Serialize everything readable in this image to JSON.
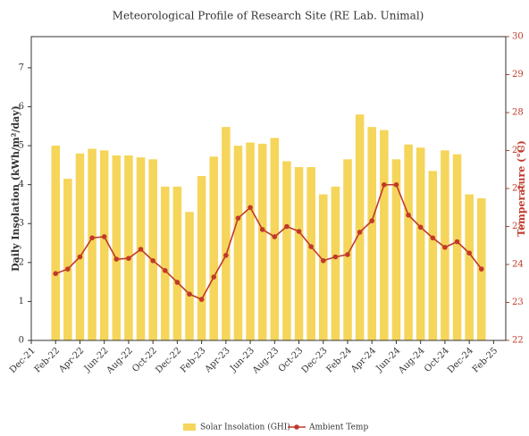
{
  "chart_data": {
    "type": "bar-line",
    "title": "Meteorological Profile of Research Site (RE Lab. Unimal)",
    "y_label": "Daily Insolation (kWh/m²/day)",
    "y2_label": "Temperature (°C)",
    "x": [
      "Feb-22",
      "Mar-22",
      "Apr-22",
      "May-22",
      "Jun-22",
      "Jul-22",
      "Aug-22",
      "Sep-22",
      "Oct-22",
      "Nov-22",
      "Dec-22",
      "Jan-23",
      "Feb-23",
      "Mar-23",
      "Apr-23",
      "May-23",
      "Jun-23",
      "Jul-23",
      "Aug-23",
      "Sep-23",
      "Oct-23",
      "Nov-23",
      "Dec-23",
      "Jan-24",
      "Feb-24",
      "Mar-24",
      "Apr-24",
      "May-24",
      "Jun-24",
      "Jul-24",
      "Aug-24",
      "Sep-24",
      "Oct-24",
      "Nov-24",
      "Dec-24",
      "Jan-25"
    ],
    "series": [
      {
        "name": "Solar Insolation (GHI)",
        "type": "bar",
        "color": "#f5d55a",
        "values": [
          5.0,
          4.15,
          4.8,
          4.92,
          4.88,
          4.75,
          4.75,
          4.7,
          4.65,
          3.95,
          3.95,
          3.3,
          4.22,
          4.72,
          5.48,
          5.0,
          5.08,
          5.05,
          5.2,
          4.6,
          4.45,
          4.45,
          3.75,
          3.95,
          4.65,
          5.8,
          5.48,
          5.4,
          4.65,
          5.03,
          4.95,
          4.35,
          4.88,
          4.78,
          3.75,
          3.65
        ]
      },
      {
        "name": "Ambient Temp",
        "type": "line",
        "axis": "y2",
        "color": "#c0392b",
        "values": [
          23.76,
          23.88,
          24.2,
          24.7,
          24.73,
          24.14,
          24.16,
          24.4,
          24.1,
          23.84,
          23.53,
          23.22,
          23.08,
          23.67,
          24.24,
          25.22,
          25.5,
          24.92,
          24.73,
          25.0,
          24.87,
          24.47,
          24.1,
          24.2,
          24.26,
          24.85,
          25.15,
          26.1,
          26.1,
          25.3,
          24.98,
          24.7,
          24.45,
          24.6,
          24.3,
          23.88
        ]
      }
    ],
    "xlim": [
      "Dec-21",
      "Mar-25"
    ],
    "xticks": [
      "Dec-21",
      "Feb-22",
      "Apr-22",
      "Jun-22",
      "Aug-22",
      "Oct-22",
      "Dec-22",
      "Feb-23",
      "Apr-23",
      "Jun-23",
      "Aug-23",
      "Oct-23",
      "Dec-23",
      "Feb-24",
      "Apr-24",
      "Jun-24",
      "Aug-24",
      "Oct-24",
      "Dec-24",
      "Feb-25"
    ],
    "ylim": [
      0,
      7.8
    ],
    "yticks": [
      0,
      1,
      2,
      3,
      4,
      5,
      6,
      7
    ],
    "y2lim": [
      22,
      30
    ],
    "y2ticks": [
      22,
      23,
      24,
      25,
      26,
      27,
      28,
      29,
      30
    ],
    "legend": "bottom"
  }
}
